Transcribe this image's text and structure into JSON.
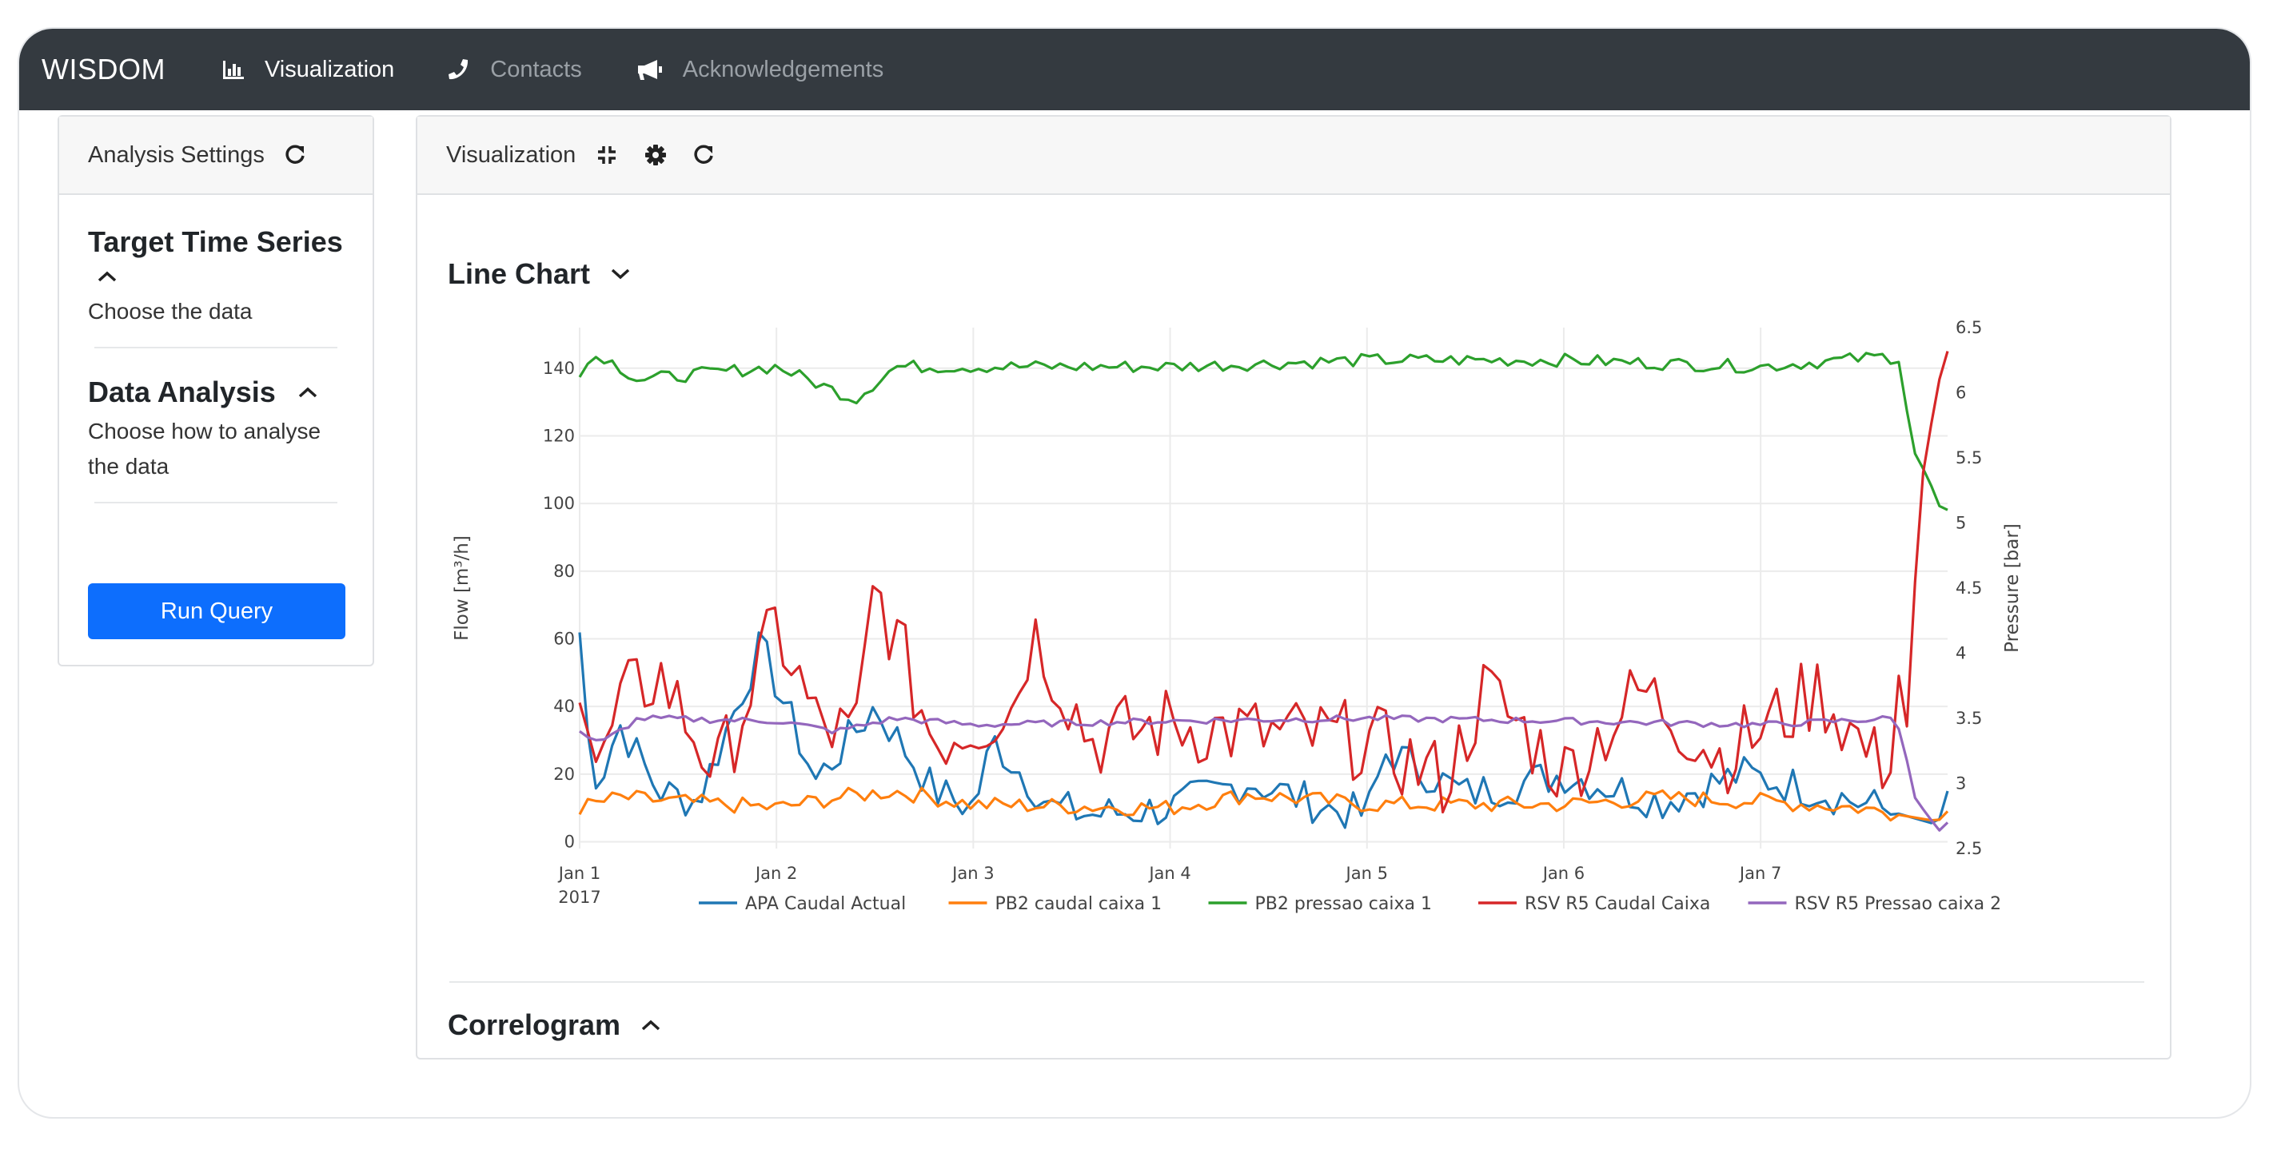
{
  "navbar": {
    "brand": "WISDOM",
    "links": [
      {
        "label": "Visualization",
        "icon": "bar-chart-icon",
        "active": true
      },
      {
        "label": "Contacts",
        "icon": "phone-icon",
        "active": false
      },
      {
        "label": "Acknowledgements",
        "icon": "megaphone-icon",
        "active": false
      }
    ]
  },
  "sidebar": {
    "header": "Analysis Settings",
    "header_icon": "refresh-icon",
    "sections": [
      {
        "title": "Target Time Series",
        "desc_lines": [
          "Choose the data"
        ],
        "state": "expanded"
      },
      {
        "title": "Data Analysis",
        "desc_lines": [
          "Choose how to analyse",
          "the data"
        ],
        "state": "expanded"
      }
    ],
    "run_button": "Run Query"
  },
  "main": {
    "header": "Visualization",
    "header_icons": [
      "compress-icon",
      "gear-icon",
      "refresh-icon"
    ],
    "line_chart_title": "Line Chart",
    "correlogram_title": "Correlogram"
  },
  "colors": {
    "navbar": "#343a40",
    "primary_button": "#0d6efd",
    "series": [
      "#1f77b4",
      "#ff7f0e",
      "#2ca02c",
      "#d62728",
      "#9467bd"
    ]
  },
  "chart_data": {
    "type": "line",
    "x_tick_labels": [
      "Jan 1",
      "Jan 2",
      "Jan 3",
      "Jan 4",
      "Jan 5",
      "Jan 6",
      "Jan 7"
    ],
    "x_sublabel": "2017",
    "x_range_days": [
      0,
      6.95
    ],
    "ylabel_left": "Flow [m³/h]",
    "ylabel_right": "Pressure [bar]",
    "y_left_ticks": [
      0,
      20,
      40,
      60,
      80,
      100,
      120,
      140
    ],
    "y_right_ticks": [
      2.5,
      3,
      3.5,
      4,
      4.5,
      5,
      5.5,
      6,
      6.5
    ],
    "ylim_left": [
      -2,
      152
    ],
    "ylim_right": [
      2.5,
      6.5
    ],
    "grid": true,
    "legend_position": "bottom",
    "series": [
      {
        "name": "APA Caudal Actual",
        "axis": "left",
        "base": 14,
        "noise": 6,
        "anchors": [
          [
            0,
            62
          ],
          [
            0.05,
            25
          ],
          [
            0.1,
            18
          ],
          [
            0.2,
            35
          ],
          [
            0.4,
            15
          ],
          [
            0.6,
            12
          ],
          [
            0.92,
            58
          ],
          [
            1.2,
            18
          ],
          [
            1.5,
            40
          ],
          [
            1.8,
            15
          ],
          [
            2.0,
            10
          ],
          [
            2.1,
            30
          ],
          [
            2.4,
            10
          ],
          [
            2.6,
            8
          ],
          [
            3.0,
            10
          ],
          [
            3.4,
            18
          ],
          [
            3.8,
            10
          ],
          [
            4.0,
            8
          ],
          [
            4.1,
            27
          ],
          [
            4.5,
            14
          ],
          [
            5.0,
            20
          ],
          [
            5.5,
            12
          ],
          [
            5.9,
            20
          ],
          [
            6.3,
            15
          ],
          [
            6.9,
            5
          ],
          [
            6.95,
            15
          ]
        ]
      },
      {
        "name": "PB2 caudal caixa 1",
        "axis": "left",
        "base": 10,
        "noise": 2.5,
        "anchors": [
          [
            0,
            10
          ],
          [
            0.2,
            13
          ],
          [
            1.0,
            10
          ],
          [
            1.3,
            13
          ],
          [
            1.6,
            15
          ],
          [
            2.0,
            11
          ],
          [
            3.0,
            10
          ],
          [
            3.4,
            14
          ],
          [
            4.0,
            11
          ],
          [
            5.0,
            11
          ],
          [
            5.5,
            13
          ],
          [
            6.0,
            12
          ],
          [
            6.5,
            10
          ],
          [
            6.9,
            6
          ],
          [
            6.95,
            9
          ]
        ]
      },
      {
        "name": "PB2 pressao caixa 1",
        "axis": "right",
        "base": 6.2,
        "noise": 0.05,
        "anchors": [
          [
            0,
            6.17
          ],
          [
            0.1,
            6.3
          ],
          [
            0.3,
            6.1
          ],
          [
            1.0,
            6.2
          ],
          [
            1.4,
            5.95
          ],
          [
            1.6,
            6.2
          ],
          [
            3.0,
            6.2
          ],
          [
            4.0,
            6.25
          ],
          [
            5.0,
            6.25
          ],
          [
            6.0,
            6.2
          ],
          [
            6.65,
            6.28
          ],
          [
            6.72,
            6.22
          ],
          [
            6.76,
            5.6
          ],
          [
            6.85,
            5.35
          ],
          [
            6.93,
            5.05
          ],
          [
            6.95,
            5.1
          ]
        ]
      },
      {
        "name": "RSV R5 Caudal Caixa",
        "axis": "left",
        "base": 32,
        "noise": 12,
        "anchors": [
          [
            0,
            50
          ],
          [
            0.1,
            18
          ],
          [
            0.2,
            40
          ],
          [
            0.4,
            50
          ],
          [
            0.7,
            20
          ],
          [
            1.0,
            64
          ],
          [
            1.2,
            35
          ],
          [
            1.4,
            30
          ],
          [
            1.5,
            76
          ],
          [
            1.8,
            30
          ],
          [
            2.2,
            40
          ],
          [
            2.3,
            63
          ],
          [
            2.6,
            30
          ],
          [
            3.0,
            35
          ],
          [
            3.4,
            32
          ],
          [
            4.0,
            30
          ],
          [
            4.4,
            18
          ],
          [
            4.6,
            45
          ],
          [
            5.0,
            20
          ],
          [
            5.4,
            45
          ],
          [
            5.8,
            25
          ],
          [
            6.3,
            45
          ],
          [
            6.6,
            22
          ],
          [
            6.68,
            30
          ],
          [
            6.72,
            65
          ],
          [
            6.75,
            25
          ],
          [
            6.8,
            100
          ],
          [
            6.9,
            135
          ],
          [
            6.95,
            145
          ]
        ]
      },
      {
        "name": "RSV R5 Pressao caixa 2",
        "axis": "right",
        "base": 3.48,
        "noise": 0.025,
        "anchors": [
          [
            0,
            3.4
          ],
          [
            0.1,
            3.3
          ],
          [
            0.3,
            3.5
          ],
          [
            1.0,
            3.48
          ],
          [
            1.3,
            3.4
          ],
          [
            1.6,
            3.5
          ],
          [
            2.0,
            3.45
          ],
          [
            3.0,
            3.48
          ],
          [
            4.0,
            3.5
          ],
          [
            5.0,
            3.48
          ],
          [
            6.0,
            3.45
          ],
          [
            6.68,
            3.5
          ],
          [
            6.72,
            3.35
          ],
          [
            6.78,
            2.9
          ],
          [
            6.85,
            2.75
          ],
          [
            6.93,
            2.6
          ],
          [
            6.95,
            2.7
          ]
        ]
      }
    ]
  }
}
